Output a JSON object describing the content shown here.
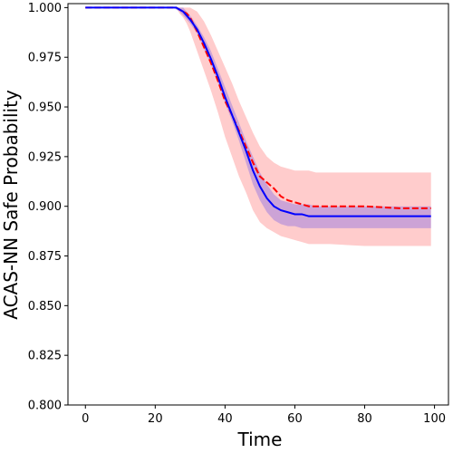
{
  "chart_data": {
    "type": "line",
    "xlabel": "Time",
    "ylabel": "ACAS-NN Safe Probability",
    "xlim": [
      -5,
      104
    ],
    "ylim": [
      0.8,
      1.002
    ],
    "xticks": [
      0,
      20,
      40,
      60,
      80,
      100
    ],
    "xtick_labels": [
      "0",
      "20",
      "40",
      "60",
      "80",
      "100"
    ],
    "yticks": [
      0.8,
      0.825,
      0.85,
      0.875,
      0.9,
      0.925,
      0.95,
      0.975,
      1.0
    ],
    "ytick_labels": [
      "0.800",
      "0.825",
      "0.850",
      "0.875",
      "0.900",
      "0.925",
      "0.950",
      "0.975",
      "1.000"
    ],
    "grid": false,
    "series": [
      {
        "style": "dashed",
        "color": "#ff0000",
        "band_color": "#ff0000",
        "band_opacity": 0.2,
        "x": [
          0,
          26,
          27,
          28,
          29,
          30,
          32,
          34,
          36,
          38,
          40,
          42,
          44,
          46,
          48,
          50,
          52,
          54,
          56,
          58,
          60,
          62,
          64,
          66,
          70,
          80,
          90,
          99
        ],
        "y": [
          1.0,
          1.0,
          0.999,
          0.998,
          0.997,
          0.995,
          0.988,
          0.98,
          0.972,
          0.963,
          0.953,
          0.946,
          0.938,
          0.93,
          0.922,
          0.915,
          0.912,
          0.909,
          0.905,
          0.903,
          0.902,
          0.901,
          0.9,
          0.9,
          0.9,
          0.9,
          0.899,
          0.899
        ],
        "lower": [
          1.0,
          1.0,
          0.997,
          0.995,
          0.992,
          0.988,
          0.978,
          0.968,
          0.958,
          0.947,
          0.935,
          0.925,
          0.915,
          0.907,
          0.898,
          0.892,
          0.889,
          0.887,
          0.885,
          0.884,
          0.883,
          0.882,
          0.881,
          0.881,
          0.881,
          0.88,
          0.88,
          0.88
        ],
        "upper": [
          1.0,
          1.0,
          1.0,
          1.0,
          1.0,
          1.0,
          0.998,
          0.993,
          0.986,
          0.978,
          0.97,
          0.962,
          0.953,
          0.945,
          0.937,
          0.93,
          0.925,
          0.922,
          0.92,
          0.919,
          0.918,
          0.918,
          0.918,
          0.917,
          0.917,
          0.917,
          0.917,
          0.917
        ]
      },
      {
        "style": "solid",
        "color": "#0000ff",
        "band_color": "#0000ff",
        "band_opacity": 0.2,
        "x": [
          0,
          25,
          26,
          27,
          28,
          29,
          30,
          32,
          34,
          36,
          38,
          40,
          42,
          44,
          46,
          48,
          50,
          52,
          54,
          56,
          58,
          60,
          62,
          64,
          66,
          70,
          80,
          90,
          99
        ],
        "y": [
          1.0,
          1.0,
          1.0,
          0.999,
          0.998,
          0.996,
          0.994,
          0.989,
          0.982,
          0.974,
          0.965,
          0.955,
          0.946,
          0.937,
          0.928,
          0.918,
          0.91,
          0.904,
          0.9,
          0.898,
          0.897,
          0.896,
          0.896,
          0.895,
          0.895,
          0.895,
          0.895,
          0.895,
          0.895
        ],
        "lower": [
          1.0,
          1.0,
          0.999,
          0.998,
          0.996,
          0.994,
          0.992,
          0.987,
          0.979,
          0.971,
          0.962,
          0.952,
          0.943,
          0.933,
          0.922,
          0.911,
          0.903,
          0.897,
          0.893,
          0.891,
          0.89,
          0.89,
          0.889,
          0.889,
          0.889,
          0.889,
          0.889,
          0.889,
          0.889
        ],
        "upper": [
          1.0,
          1.0,
          1.0,
          1.0,
          1.0,
          0.998,
          0.996,
          0.991,
          0.985,
          0.978,
          0.969,
          0.96,
          0.951,
          0.942,
          0.933,
          0.925,
          0.917,
          0.911,
          0.906,
          0.903,
          0.902,
          0.901,
          0.901,
          0.901,
          0.9,
          0.9,
          0.9,
          0.9,
          0.9
        ]
      }
    ]
  }
}
